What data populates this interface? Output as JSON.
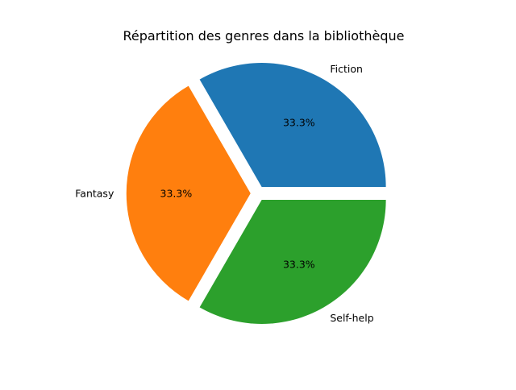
{
  "chart_data": {
    "type": "pie",
    "title": "Répartition des genres dans la bibliothèque",
    "categories": [
      "Fiction",
      "Fantasy",
      "Self-help"
    ],
    "values": [
      1,
      1,
      1
    ],
    "percent_labels": [
      "33.3%",
      "33.3%",
      "33.3%"
    ],
    "colors": [
      "#1f77b4",
      "#ff7f0e",
      "#2ca02c"
    ],
    "exploded": true,
    "legend": "none"
  }
}
